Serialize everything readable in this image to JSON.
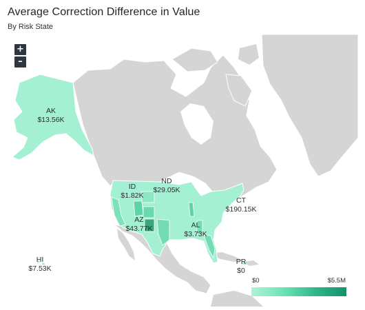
{
  "title": "Average Correction Difference in Value",
  "subtitle": "By Risk State",
  "zoom": {
    "in_label": "+",
    "out_label": "–"
  },
  "legend": {
    "min_label": "$0",
    "max_label": "$5.5M",
    "scale_colors": [
      "#aff2d8",
      "#12916a"
    ]
  },
  "colors": {
    "land": "#d5d5d5",
    "ocean": "#ffffff",
    "borders": "#ffffff",
    "low": "#a4f0d2",
    "mid": "#5ed3a7",
    "high": "#3aa87c"
  },
  "states": [
    {
      "code": "AK",
      "value": "$13.56K"
    },
    {
      "code": "ND",
      "value": "$29.05K"
    },
    {
      "code": "ID",
      "value": "$1.82K"
    },
    {
      "code": "CT",
      "value": "$190.15K"
    },
    {
      "code": "AZ",
      "value": "$43.77K"
    },
    {
      "code": "AL",
      "value": "$3.73K"
    },
    {
      "code": "HI",
      "value": "$7.53K"
    },
    {
      "code": "PR",
      "value": "$0"
    }
  ]
}
